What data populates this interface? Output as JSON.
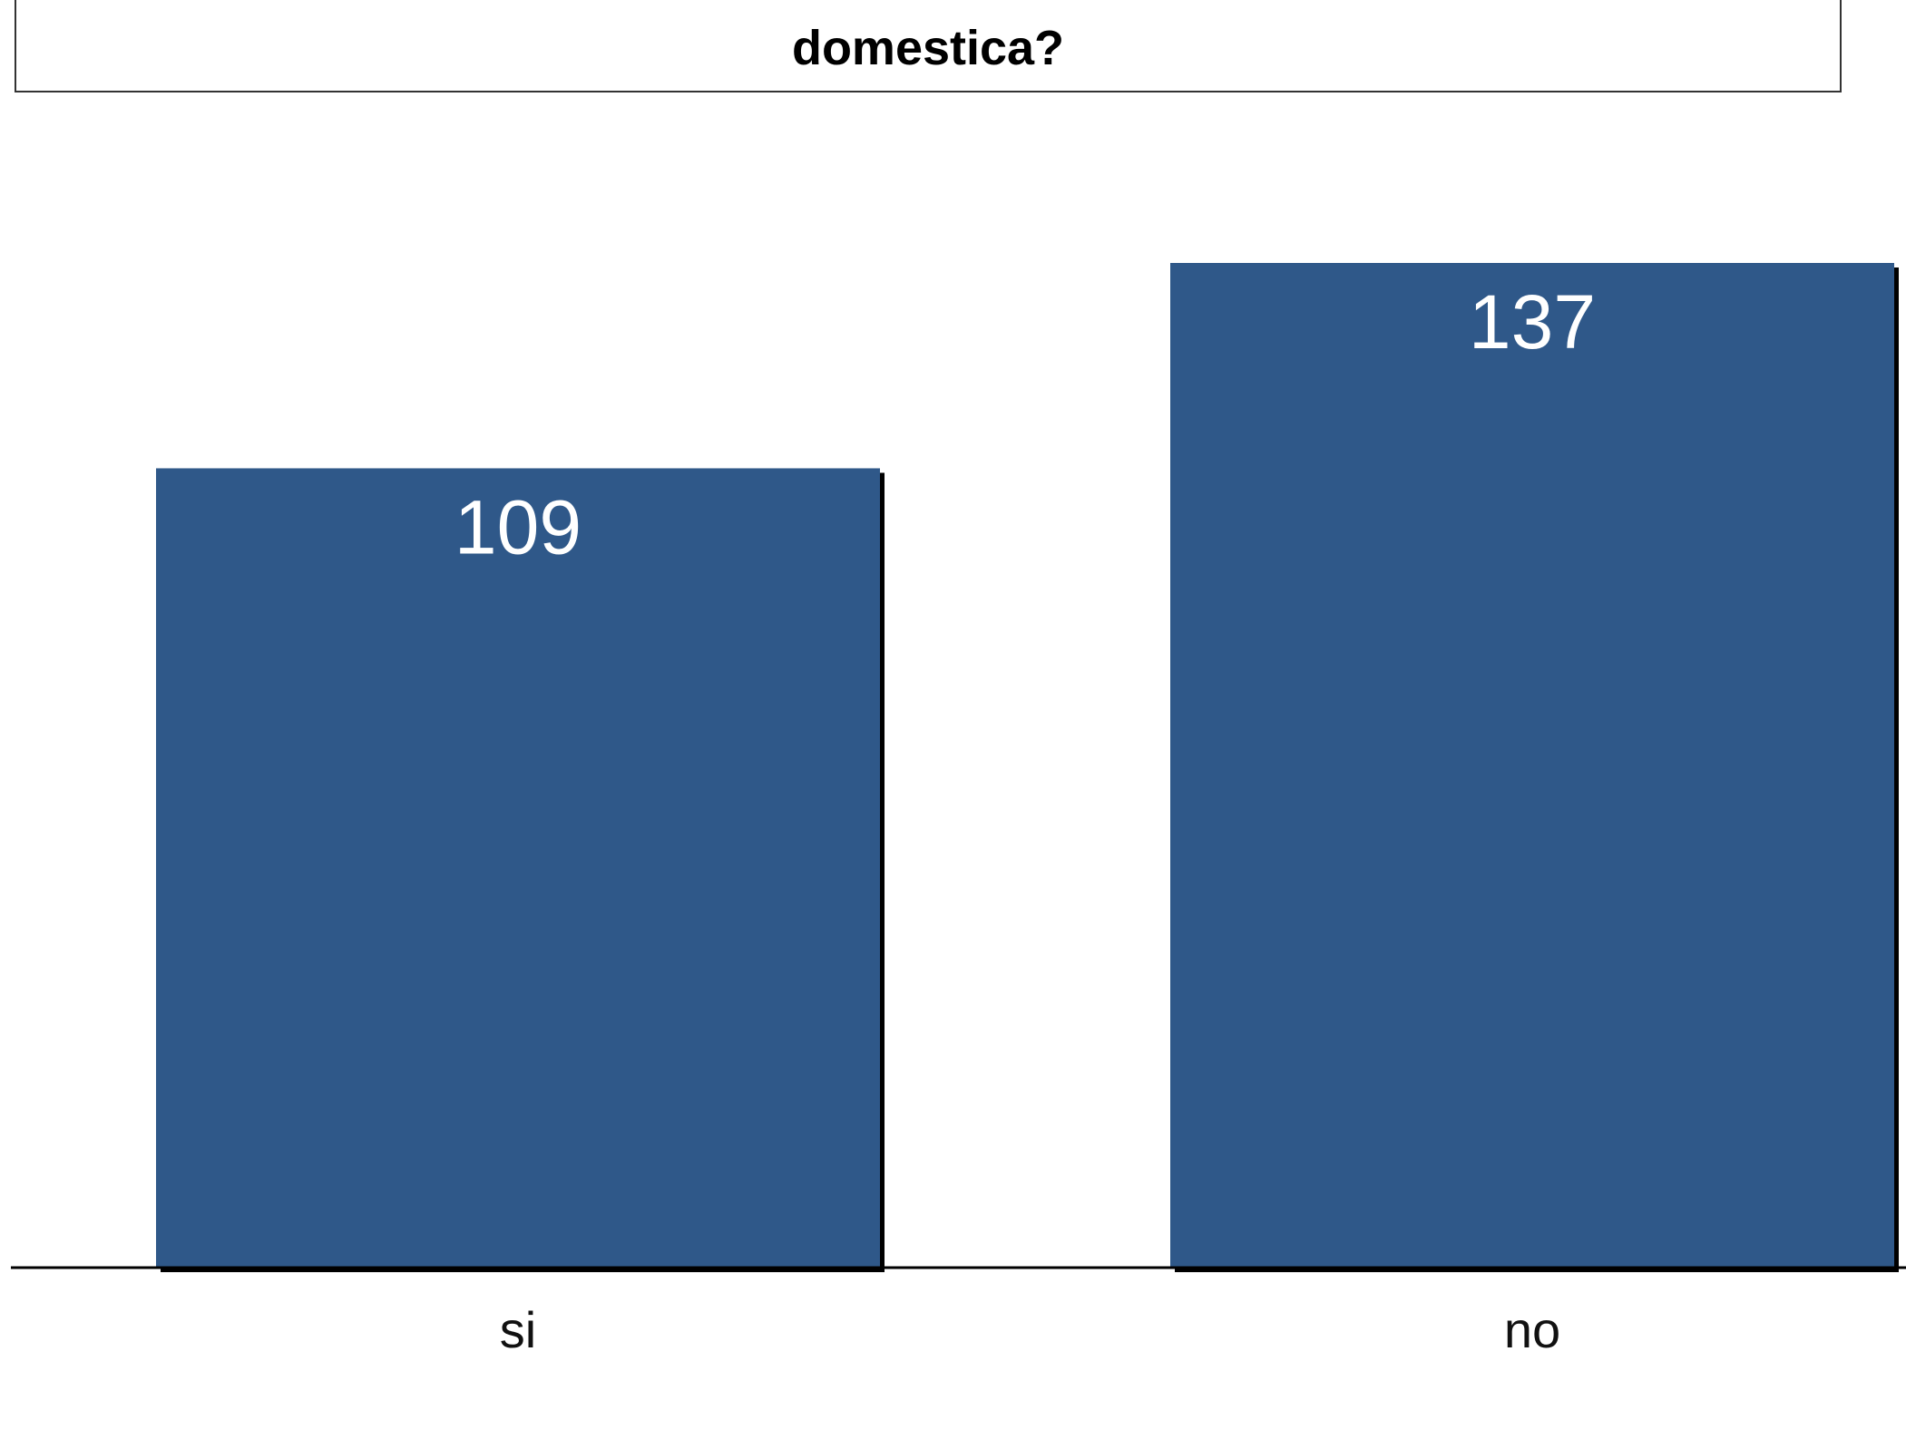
{
  "chart_data": {
    "type": "bar",
    "title": "domestica?",
    "categories": [
      "si",
      "no"
    ],
    "values": [
      109,
      137
    ],
    "xlabel": "",
    "ylabel": "",
    "ylim": [
      0,
      137
    ],
    "grid": false,
    "legend": "none",
    "bar_color": "#2f5889",
    "shadow_color": "#000000"
  }
}
